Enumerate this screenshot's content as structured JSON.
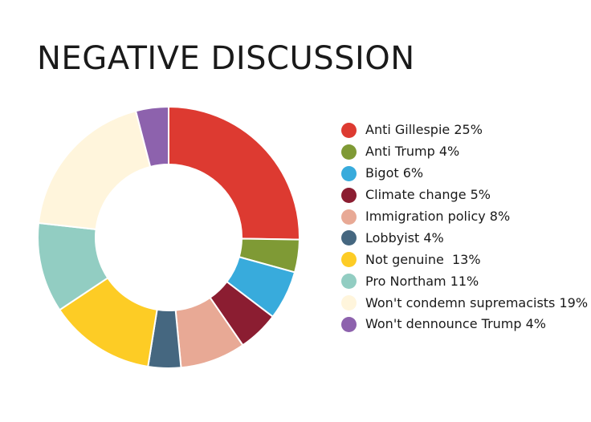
{
  "chart_data": {
    "type": "pie",
    "title": "NEGATIVE DISCUSSION",
    "categories": [
      "Anti Gillespie",
      "Anti Trump",
      "Bigot",
      "Climate change",
      "Immigration policy",
      "Lobbyist",
      "Not genuine",
      "Pro Northam",
      "Won't condemn supremacists",
      "Won't dennounce Trump"
    ],
    "values": [
      25,
      4,
      6,
      5,
      8,
      4,
      13,
      11,
      19,
      4
    ],
    "legend_labels": [
      "Anti Gillespie 25%",
      "Anti Trump 4%",
      "Bigot 6%",
      "Climate change 5%",
      "Immigration policy 8%",
      "Lobbyist 4%",
      "Not genuine  13%",
      "Pro Northam 11%",
      "Won't condemn supremacists 19%",
      "Won't dennounce Trump 4%"
    ],
    "colors": [
      "#dd3a31",
      "#7f9a35",
      "#38abdc",
      "#8b1d31",
      "#e8a995",
      "#456780",
      "#fdcc25",
      "#92cdc2",
      "#fff5dc",
      "#8d62ad"
    ],
    "donut": true,
    "legend_position": "right"
  }
}
